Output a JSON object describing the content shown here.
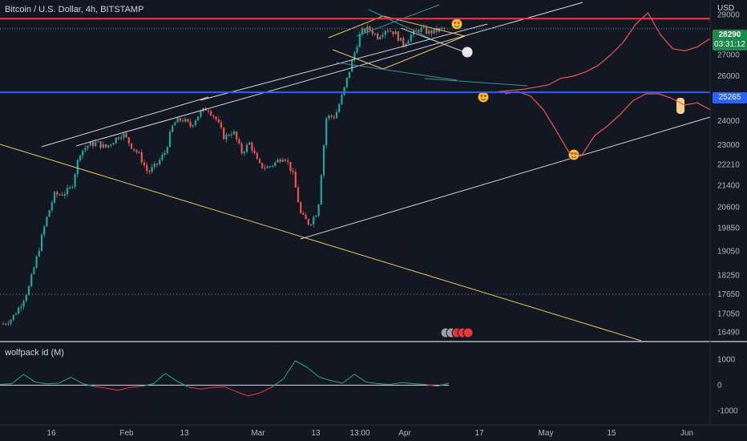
{
  "header": {
    "symbol_title": "Bitcoin / U.S. Dollar, 4h, BITSTAMP",
    "currency": "USD",
    "indicator_title": "wolfpack id (M)"
  },
  "price_tags": {
    "last_price": "28290",
    "countdown": "03:31:12",
    "blue_level": "25265"
  },
  "chart_data": [
    {
      "type": "line",
      "title": "Bitcoin / U.S. Dollar, 4h, BITSTAMP",
      "ylabel": "USD",
      "y_scale": "log",
      "ylim": [
        16250,
        29600
      ],
      "y_ticks": [
        29000,
        28000,
        27000,
        26000,
        25265,
        24000,
        23000,
        22210,
        21400,
        20600,
        19850,
        19050,
        18250,
        17650,
        17050,
        16490
      ],
      "x_tick_labels": [
        "16",
        "Feb",
        "13",
        "Mar",
        "13",
        "13:00",
        "Apr",
        "17",
        "May",
        "15",
        "Jun"
      ],
      "horizontal_levels": [
        {
          "value": 28800,
          "color": "#f23645"
        },
        {
          "value": 25265,
          "color": "#2962ff"
        },
        {
          "value": 17650,
          "color": "#787b86"
        }
      ],
      "series": [
        {
          "values": [
            16750,
            16900,
            17300,
            17850,
            18900,
            20100,
            21050,
            21100,
            21300,
            22700,
            23000,
            23100,
            22900,
            23200,
            23500,
            23000,
            22600,
            21900,
            22200,
            22700,
            23900,
            24100,
            23800,
            24300,
            24600,
            24100,
            23300,
            23600,
            22700,
            23100,
            22200,
            22100,
            22300,
            22600,
            21900,
            20300,
            20000,
            20500,
            24200,
            24200,
            25300,
            26700,
            28100,
            28300,
            27900,
            28300,
            28100,
            27500,
            28000,
            28300,
            28100,
            28200,
            28300
          ],
          "up_color": "#26a69a",
          "down_color": "#ef5350"
        },
        {
          "name": "",
          "values": [
            25300,
            25350,
            25400,
            25500,
            25600,
            25900,
            26000,
            26200,
            26500,
            27000,
            27600,
            28500,
            29100,
            28000,
            27300,
            27200,
            27400,
            27800
          ],
          "color": "#ef5350"
        },
        {
          "name": "",
          "values": [
            25200,
            25300,
            25100,
            24500,
            23600,
            22700,
            22600,
            23400,
            23800,
            24300,
            24900,
            25200,
            25200,
            25000,
            24700,
            24800,
            24500
          ],
          "color": "#ef5350"
        }
      ]
    },
    {
      "type": "line",
      "title": "wolfpack id (M)",
      "ylim": [
        -1300,
        1200
      ],
      "y_ticks": [
        1000,
        0,
        -1000
      ],
      "series": [
        {
          "values": [
            30,
            60,
            420,
            120,
            50,
            80,
            310,
            60,
            -50,
            -120,
            -200,
            -90,
            -40,
            60,
            460,
            150,
            -80,
            -150,
            -90,
            -60,
            -250,
            -420,
            -300,
            -80,
            250,
            950,
            700,
            320,
            180,
            80,
            430,
            120,
            60,
            30,
            100,
            60,
            30,
            -40,
            80
          ],
          "color": "#26a69a",
          "negative_color": "#f23645"
        }
      ]
    }
  ]
}
